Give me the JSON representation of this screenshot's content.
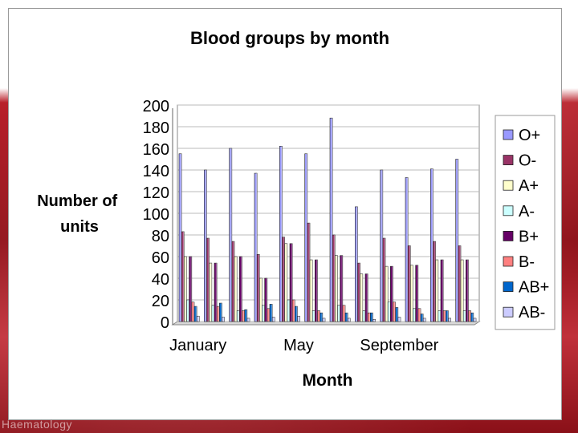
{
  "footer": {
    "text": "Haematology"
  },
  "chart_data": {
    "type": "bar",
    "title": "Blood groups by month",
    "xlabel": "Month",
    "ylabel": "Number of units",
    "ylim": [
      0,
      200
    ],
    "yticks": [
      0,
      20,
      40,
      60,
      80,
      100,
      120,
      140,
      160,
      180,
      200
    ],
    "xtick_labels": [
      {
        "label": "January",
        "at": 1
      },
      {
        "label": "May",
        "at": 5
      },
      {
        "label": "September",
        "at": 9
      }
    ],
    "categories": [
      "1",
      "2",
      "3",
      "4",
      "5",
      "6",
      "7",
      "8",
      "9",
      "10",
      "11",
      "12"
    ],
    "grid": true,
    "legend_position": "right",
    "series": [
      {
        "name": "O+",
        "color": "#9999ff",
        "values": [
          155,
          140,
          160,
          137,
          162,
          155,
          188,
          106,
          140,
          133,
          141,
          150
        ]
      },
      {
        "name": "O-",
        "color": "#993366",
        "values": [
          83,
          77,
          74,
          62,
          78,
          91,
          80,
          54,
          77,
          70,
          74,
          70
        ]
      },
      {
        "name": "A+",
        "color": "#ffffcc",
        "values": [
          60,
          54,
          60,
          40,
          72,
          57,
          61,
          44,
          51,
          52,
          57,
          57
        ]
      },
      {
        "name": "A-",
        "color": "#ccffff",
        "values": [
          20,
          15,
          10,
          15,
          20,
          10,
          15,
          10,
          18,
          12,
          10,
          10
        ]
      },
      {
        "name": "B+",
        "color": "#660066",
        "values": [
          60,
          54,
          60,
          40,
          72,
          57,
          61,
          44,
          51,
          52,
          57,
          57
        ]
      },
      {
        "name": "B-",
        "color": "#ff8080",
        "values": [
          18,
          14,
          10,
          12,
          20,
          10,
          15,
          8,
          18,
          12,
          10,
          10
        ]
      },
      {
        "name": "AB+",
        "color": "#0066cc",
        "values": [
          14,
          17,
          11,
          16,
          14,
          8,
          8,
          8,
          13,
          7,
          10,
          8
        ]
      },
      {
        "name": "AB-",
        "color": "#ccccff",
        "values": [
          5,
          4,
          3,
          4,
          5,
          3,
          3,
          2,
          4,
          3,
          3,
          3
        ]
      }
    ]
  }
}
